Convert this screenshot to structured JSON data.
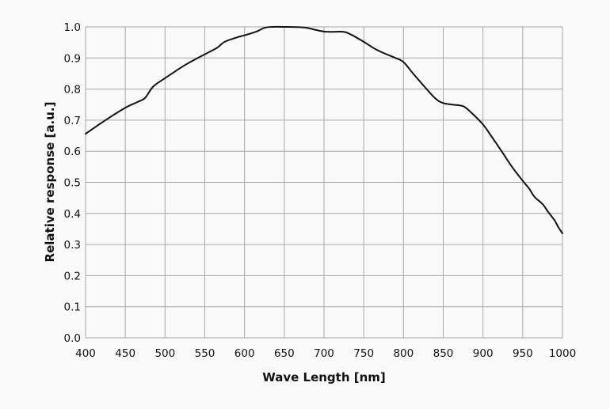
{
  "chart_data": {
    "type": "line",
    "title": "",
    "xlabel": "Wave Length [nm]",
    "ylabel": "Relative response [a.u.]",
    "xlim": [
      400,
      1000
    ],
    "ylim": [
      0.0,
      1.0
    ],
    "grid": true,
    "legend": null,
    "x_ticks": [
      400,
      450,
      500,
      550,
      600,
      650,
      700,
      750,
      800,
      850,
      900,
      950,
      1000
    ],
    "y_ticks": [
      "0.0",
      "0.1",
      "0.2",
      "0.3",
      "0.4",
      "0.5",
      "0.6",
      "0.7",
      "0.8",
      "0.9",
      "1.0"
    ],
    "series": [
      {
        "name": "Relative response",
        "color": "#111111",
        "x": [
          400,
          425,
          450,
          465,
          475,
          485,
          500,
          525,
          550,
          565,
          575,
          590,
          600,
          615,
          625,
          635,
          650,
          675,
          690,
          700,
          710,
          725,
          735,
          750,
          765,
          775,
          790,
          800,
          812,
          825,
          840,
          850,
          862,
          875,
          885,
          900,
          912,
          925,
          937,
          950,
          958,
          965,
          975,
          982,
          990,
          995,
          1000
        ],
        "y": [
          0.656,
          0.7,
          0.74,
          0.758,
          0.772,
          0.808,
          0.835,
          0.877,
          0.912,
          0.932,
          0.952,
          0.966,
          0.973,
          0.985,
          0.997,
          1.0,
          1.0,
          0.998,
          0.99,
          0.985,
          0.984,
          0.984,
          0.974,
          0.952,
          0.928,
          0.916,
          0.9,
          0.887,
          0.85,
          0.812,
          0.77,
          0.755,
          0.75,
          0.745,
          0.725,
          0.686,
          0.643,
          0.594,
          0.548,
          0.505,
          0.48,
          0.453,
          0.43,
          0.405,
          0.378,
          0.355,
          0.336
        ]
      }
    ]
  }
}
